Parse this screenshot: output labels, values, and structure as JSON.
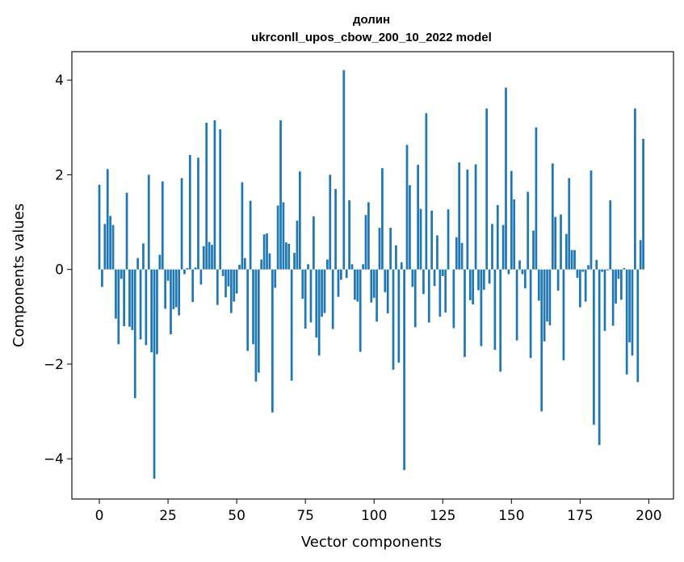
{
  "chart_data": {
    "type": "bar",
    "title_line1": "долин",
    "title_line2": "ukrconll_upos_cbow_200_10_2022 model",
    "xlabel": "Vector components",
    "ylabel": "Components values",
    "xlim": [
      -10,
      209
    ],
    "ylim": [
      -4.85,
      4.6
    ],
    "x_ticks": [
      0,
      25,
      50,
      75,
      100,
      125,
      150,
      175,
      200
    ],
    "x_tick_labels": [
      "0",
      "25",
      "50",
      "75",
      "100",
      "125",
      "150",
      "175",
      "200"
    ],
    "y_ticks": [
      -4,
      -2,
      0,
      2,
      4
    ],
    "y_tick_labels": [
      "−4",
      "−2",
      "0",
      "2",
      "4"
    ],
    "grid": false,
    "bar_color": "#1f77b4",
    "values": [
      1.79,
      -0.37,
      0.96,
      2.12,
      1.13,
      0.94,
      -1.04,
      -1.58,
      -0.2,
      -1.2,
      1.62,
      -1.21,
      -1.28,
      -2.72,
      0.24,
      -1.48,
      0.55,
      -1.6,
      2.0,
      -1.75,
      -4.42,
      -1.79,
      0.31,
      1.86,
      -0.83,
      -0.24,
      -1.37,
      -0.84,
      -0.8,
      -0.97,
      1.93,
      -0.1,
      0.03,
      2.42,
      -0.69,
      0.04,
      2.36,
      -0.32,
      0.49,
      3.1,
      0.58,
      0.52,
      3.15,
      -0.75,
      2.96,
      -0.14,
      -0.59,
      -0.36,
      -0.92,
      -0.68,
      -0.51,
      0.1,
      1.84,
      0.24,
      -1.72,
      1.45,
      -1.58,
      -2.37,
      -2.18,
      0.21,
      0.74,
      0.76,
      0.34,
      -3.02,
      -0.39,
      1.35,
      3.15,
      1.42,
      0.57,
      0.54,
      -2.35,
      0.35,
      1.03,
      2.07,
      -0.62,
      -1.25,
      0.11,
      -1.12,
      1.12,
      -1.44,
      -1.82,
      -1.0,
      -0.92,
      0.21,
      2.0,
      -1.26,
      1.7,
      -0.58,
      -0.22,
      4.21,
      -0.18,
      1.46,
      0.11,
      -0.64,
      -0.68,
      -1.74,
      0.11,
      1.15,
      1.42,
      -0.7,
      -0.6,
      -1.1,
      0.88,
      2.14,
      -0.48,
      -0.93,
      0.88,
      -2.12,
      0.51,
      -1.97,
      0.15,
      -4.24,
      2.63,
      1.78,
      -0.37,
      -1.22,
      2.21,
      1.28,
      -0.52,
      3.3,
      -1.12,
      1.24,
      -0.35,
      0.72,
      -1.0,
      -0.14,
      -0.91,
      1.27,
      0.0,
      -1.24,
      0.68,
      2.26,
      0.56,
      -1.85,
      2.11,
      -0.65,
      -0.74,
      2.22,
      -0.44,
      -1.62,
      -0.43,
      3.4,
      -0.3,
      0.96,
      -1.7,
      1.36,
      -2.16,
      0.94,
      3.84,
      -0.1,
      2.08,
      1.48,
      -1.5,
      0.19,
      -0.1,
      -0.4,
      1.64,
      -1.87,
      0.82,
      3.0,
      -0.66,
      -3.0,
      -1.52,
      -1.1,
      -1.18,
      2.24,
      1.11,
      -0.45,
      1.16,
      -1.92,
      0.75,
      1.93,
      0.41,
      0.41,
      -0.18,
      -0.8,
      -0.05,
      -0.68,
      0.09,
      2.09,
      -3.28,
      0.2,
      -3.71,
      -0.05,
      -1.3,
      -0.02,
      1.46,
      -1.19,
      -0.72,
      -0.2,
      -0.64,
      0.03,
      -2.22,
      -1.54,
      -1.82,
      3.4,
      -2.38,
      0.62,
      2.76
    ]
  }
}
